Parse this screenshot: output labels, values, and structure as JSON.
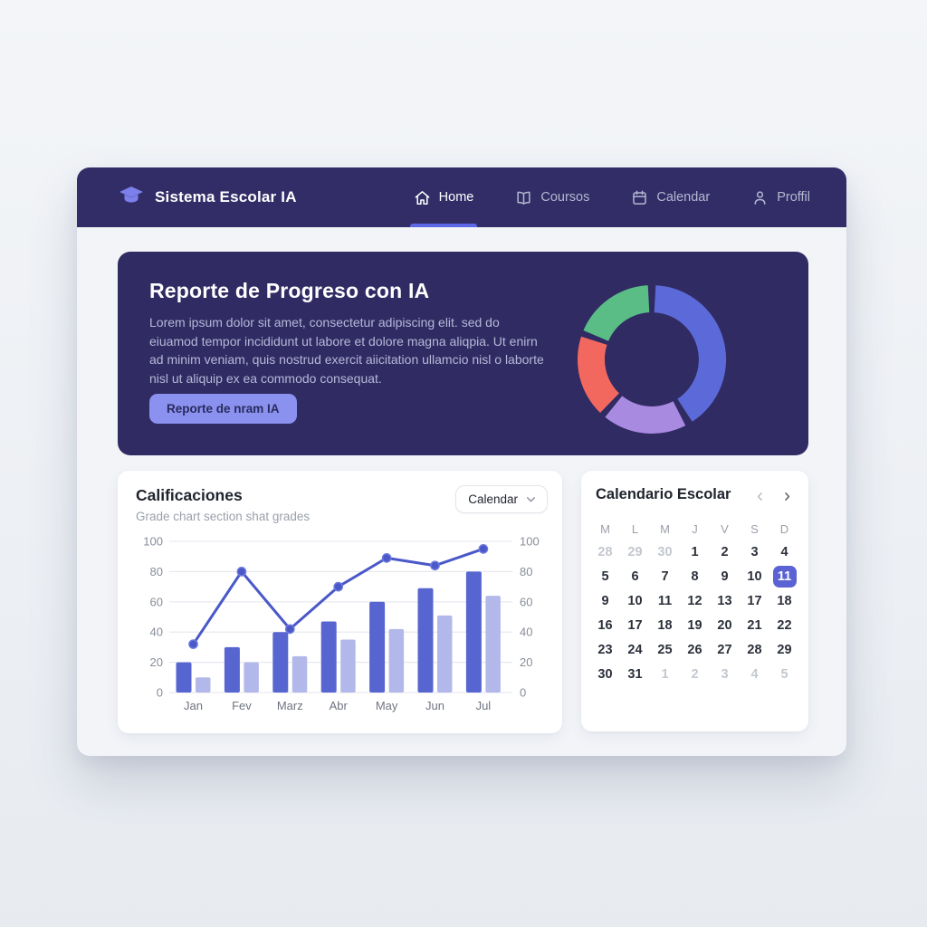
{
  "colors": {
    "page_bg": "#edf0f4",
    "window_bg": "#f2f4f8",
    "navbar_bg": "#322d66",
    "hero_bg": "#312b63",
    "accent_underline": "#5d68e6",
    "hero_button_bg": "#8b91ee",
    "hero_button_text": "#272b5e",
    "bar_dark": "#5765d1",
    "bar_light": "#b2b9ea",
    "line": "#4a58c8",
    "grid_line": "#e7e9ef",
    "axis_label": "#878d98",
    "selected_day_bg": "#5a62d4",
    "logo": "#7b80ea"
  },
  "navbar": {
    "brand": "Sistema Escolar IA",
    "logo_icon": "graduation-cap-icon",
    "items": [
      {
        "label": "Home",
        "icon": "home-icon",
        "active": true
      },
      {
        "label": "Coursos",
        "icon": "book-icon",
        "active": false
      },
      {
        "label": "Calendar",
        "icon": "calendar-icon",
        "active": false
      },
      {
        "label": "Proffil",
        "icon": "user-icon",
        "active": false
      }
    ]
  },
  "hero": {
    "title": "Reporte de Progreso con IA",
    "body": "Lorem ipsum dolor sit amet, consectetur adipiscing elit. sed do eiuamod tempor incididunt ut labore et dolore magna aliqpia. Ut enirn ad minim veniam, quis nostrud exercit aiicitation ullamcio nisl o laborte nisl ut aliquip ex ea commodo consequat.",
    "button_label": "Reporte de nram IA"
  },
  "grades_card": {
    "title": "Calificaciones",
    "subtitle": "Grade chart section shat grades",
    "dropdown_label": "Calendar"
  },
  "calendar_card": {
    "title": "Calendario Escolar",
    "day_headers": [
      "M",
      "L",
      "M",
      "J",
      "V",
      "S",
      "D"
    ],
    "weeks": [
      [
        {
          "v": "28",
          "muted": true
        },
        {
          "v": "29",
          "muted": true
        },
        {
          "v": "30",
          "muted": true
        },
        {
          "v": "1"
        },
        {
          "v": "2"
        },
        {
          "v": "3"
        },
        {
          "v": "4"
        }
      ],
      [
        {
          "v": "5"
        },
        {
          "v": "6"
        },
        {
          "v": "7"
        },
        {
          "v": "8"
        },
        {
          "v": "9"
        },
        {
          "v": "10"
        },
        {
          "v": "11",
          "selected": true
        }
      ],
      [
        {
          "v": "9"
        },
        {
          "v": "10"
        },
        {
          "v": "11"
        },
        {
          "v": "12"
        },
        {
          "v": "13"
        },
        {
          "v": "17"
        },
        {
          "v": "18"
        }
      ],
      [
        {
          "v": "16"
        },
        {
          "v": "17"
        },
        {
          "v": "18"
        },
        {
          "v": "19"
        },
        {
          "v": "20"
        },
        {
          "v": "21"
        },
        {
          "v": "22"
        }
      ],
      [
        {
          "v": "23"
        },
        {
          "v": "24"
        },
        {
          "v": "25"
        },
        {
          "v": "26"
        },
        {
          "v": "27"
        },
        {
          "v": "28"
        },
        {
          "v": "29"
        }
      ],
      [
        {
          "v": "30"
        },
        {
          "v": "31"
        },
        {
          "v": "1",
          "muted": true
        },
        {
          "v": "2",
          "muted": true
        },
        {
          "v": "3",
          "muted": true
        },
        {
          "v": "4",
          "muted": true
        },
        {
          "v": "5",
          "muted": true
        }
      ]
    ]
  },
  "chart_data": [
    {
      "type": "pie",
      "variant": "donut",
      "legend_position": "none",
      "segments": [
        {
          "label": "segment-blue",
          "value": 40,
          "color": "#5b6ad8",
          "start_deg": 3,
          "end_deg": 147
        },
        {
          "label": "segment-purple",
          "value": 18.5,
          "color": "#a88ae0",
          "start_deg": 153,
          "end_deg": 219
        },
        {
          "label": "segment-red",
          "value": 18,
          "color": "#f3685e",
          "start_deg": 224,
          "end_deg": 288
        },
        {
          "label": "segment-green",
          "value": 18,
          "color": "#59bd85",
          "start_deg": 293,
          "end_deg": 357
        }
      ]
    },
    {
      "type": "bar",
      "title": "Calificaciones",
      "categories": [
        "Jan",
        "Fev",
        "Marz",
        "Abr",
        "May",
        "Jun",
        "Jul"
      ],
      "series": [
        {
          "name": "grades-dark",
          "kind": "bar",
          "color": "#5765d1",
          "values": [
            20,
            30,
            40,
            47,
            60,
            69,
            80
          ]
        },
        {
          "name": "grades-light",
          "kind": "bar",
          "color": "#b2b9ea",
          "values": [
            10,
            20,
            24,
            35,
            42,
            51,
            64
          ]
        },
        {
          "name": "trend-line",
          "kind": "line",
          "color": "#4a58c8",
          "values": [
            32,
            80,
            42,
            70,
            89,
            84,
            95
          ]
        }
      ],
      "ylim": [
        0,
        100
      ],
      "yticks": [
        0,
        20,
        40,
        60,
        80,
        100
      ],
      "dual_axis": true,
      "grid": true,
      "legend_position": "none"
    }
  ]
}
